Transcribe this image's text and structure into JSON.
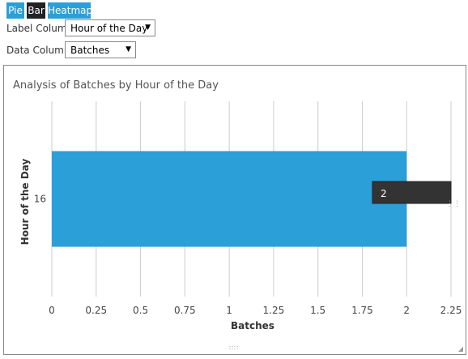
{
  "tabs": [
    {
      "label": "Pie"
    },
    {
      "label": "Bar"
    },
    {
      "label": "Heatmap"
    }
  ],
  "controls": {
    "label_column_label": "Label Column",
    "label_column_value": "Hour of the Day",
    "data_column_label": "Data Column",
    "data_column_value": "Batches"
  },
  "tooltip": {
    "text": "2"
  },
  "chart_data": {
    "type": "bar",
    "orientation": "horizontal",
    "title": "Analysis of Batches by Hour of the Day",
    "xlabel": "Batches",
    "ylabel": "Hour of the Day",
    "categories": [
      "16"
    ],
    "values": [
      2
    ],
    "xlim": [
      0,
      2.25
    ],
    "xticks": [
      "0",
      "0.25",
      "0.5",
      "0.75",
      "1",
      "1.25",
      "1.5",
      "1.75",
      "2",
      "2.25"
    ],
    "grid": true,
    "bar_color": "#2a9fd8"
  }
}
